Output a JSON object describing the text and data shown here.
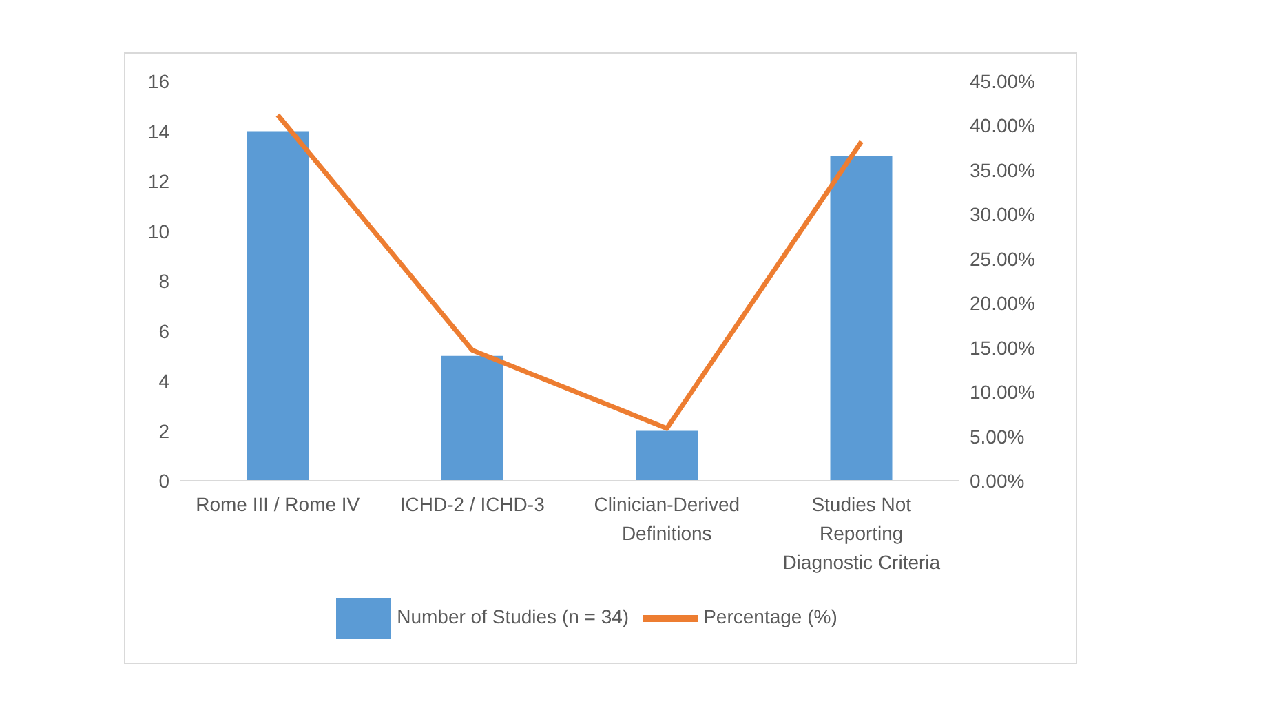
{
  "chart_data": {
    "type": "bar",
    "categories": [
      "Rome III / Rome IV",
      "ICHD-2 / ICHD-3",
      "Clinician-Derived Definitions",
      "Studies Not Reporting Diagnostic Criteria"
    ],
    "series": [
      {
        "name": "Number of Studies (n = 34)",
        "color": "#5b9bd5",
        "values": [
          14,
          5,
          2,
          13
        ]
      },
      {
        "name": "Percentage (%)",
        "type": "line",
        "axis": "y2",
        "color": "#ed7d31",
        "values": [
          41.2,
          14.7,
          5.9,
          38.2
        ]
      }
    ],
    "ylim": [
      0,
      16
    ],
    "yticks": [
      0,
      2,
      4,
      6,
      8,
      10,
      12,
      14,
      16
    ],
    "y2lim": [
      0,
      45
    ],
    "y2ticks": [
      {
        "value": 0,
        "label": "0.00%"
      },
      {
        "value": 5,
        "label": "5.00%"
      },
      {
        "value": 10,
        "label": "10.00%"
      },
      {
        "value": 15,
        "label": "15.00%"
      },
      {
        "value": 20,
        "label": "20.00%"
      },
      {
        "value": 25,
        "label": "25.00%"
      },
      {
        "value": 30,
        "label": "30.00%"
      },
      {
        "value": 35,
        "label": "35.00%"
      },
      {
        "value": 40,
        "label": "40.00%"
      },
      {
        "value": 45,
        "label": "45.00%"
      }
    ],
    "grid": false,
    "legend": "bottom",
    "marker": "none",
    "line_style": "solid"
  }
}
